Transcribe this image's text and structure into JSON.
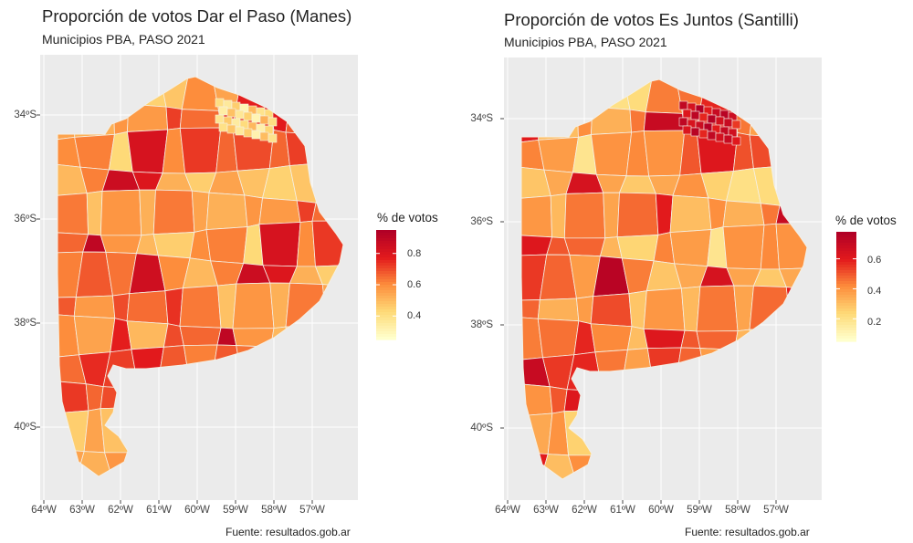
{
  "maps": [
    {
      "title": "Proporción de votos Dar el Paso (Manes)",
      "subtitle": "Municipios PBA, PASO 2021",
      "caption": "Fuente: resultados.gob.ar",
      "legend": {
        "title": "% de votos",
        "ticks": [
          "0.8",
          "0.6",
          "0.4"
        ],
        "tick_values": [
          0.8,
          0.6,
          0.4
        ],
        "range": [
          0.25,
          0.95
        ]
      },
      "y_ticks": [
        "34ºS",
        "36ºS",
        "38ºS",
        "40ºS"
      ],
      "x_ticks": [
        "64ºW",
        "63ºW",
        "62ºW",
        "61ºW",
        "60ºW",
        "59ºW",
        "58ºW",
        "57ºW"
      ],
      "values": [
        0.45,
        0.5,
        0.62,
        0.72,
        0.58,
        0.65,
        0.85,
        0.55,
        0.7,
        0.42,
        0.68,
        0.52,
        0.75,
        0.6,
        0.48,
        0.66,
        0.82,
        0.57,
        0.63,
        0.72,
        0.5,
        0.44,
        0.9,
        0.6,
        0.7,
        0.55,
        0.78,
        0.62,
        0.47,
        0.58,
        0.73,
        0.65,
        0.52,
        0.68,
        0.86,
        0.6,
        0.5,
        0.66,
        0.74,
        0.58,
        0.62,
        0.8,
        0.55,
        0.45,
        0.7,
        0.63,
        0.57,
        0.68,
        0.52,
        0.77,
        0.6,
        0.66,
        0.48,
        0.72,
        0.64
      ]
    },
    {
      "title": "Proporción de votos Es Juntos (Santilli)",
      "subtitle": "Municipios PBA, PASO 2021",
      "caption": "Fuente: resultados.gob.ar",
      "legend": {
        "title": "% de votos",
        "ticks": [
          "0.6",
          "0.4",
          "0.2"
        ],
        "tick_values": [
          0.6,
          0.4,
          0.2
        ],
        "range": [
          0.05,
          0.78
        ]
      },
      "y_ticks": [
        "34ºS",
        "36ºS",
        "38ºS",
        "40ºS"
      ],
      "x_ticks": [
        "64ºW",
        "63ºW",
        "62ºW",
        "61ºW",
        "60ºW",
        "59ºW",
        "58ºW",
        "57ºW"
      ],
      "values": [
        0.35,
        0.42,
        0.38,
        0.52,
        0.45,
        0.7,
        0.75,
        0.4,
        0.3,
        0.18,
        0.48,
        0.36,
        0.55,
        0.44,
        0.25,
        0.62,
        0.4,
        0.33,
        0.47,
        0.58,
        0.28,
        0.2,
        0.5,
        0.42,
        0.38,
        0.6,
        0.45,
        0.35,
        0.22,
        0.48,
        0.4,
        0.52,
        0.3,
        0.37,
        0.65,
        0.44,
        0.32,
        0.5,
        0.28,
        0.41,
        0.55,
        0.36,
        0.46,
        0.24,
        0.62,
        0.39,
        0.33,
        0.48,
        0.27,
        0.58,
        0.43,
        0.51,
        0.31,
        0.45,
        0.38
      ]
    }
  ]
}
